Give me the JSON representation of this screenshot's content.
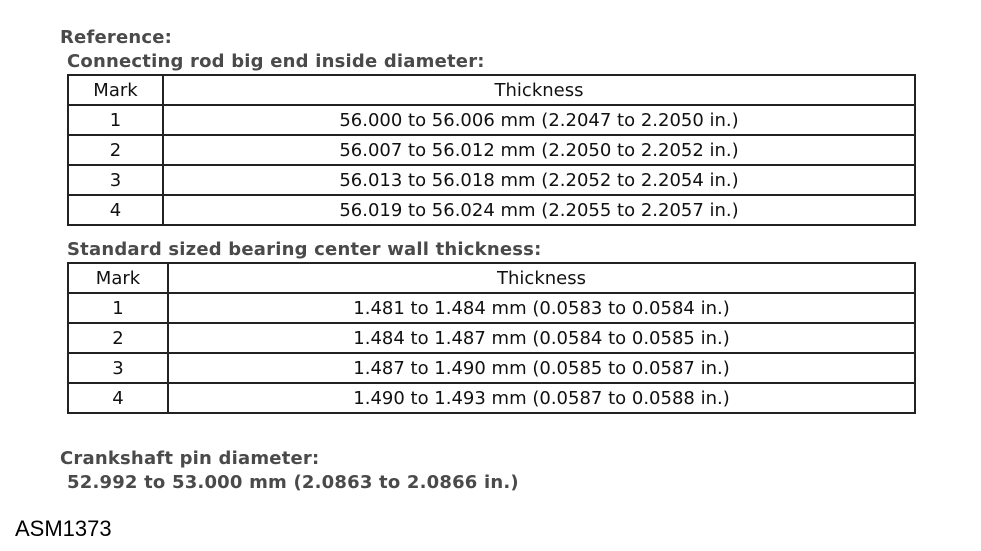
{
  "reference_label": "Reference:",
  "section1": {
    "title": "Connecting rod big end inside diameter:",
    "headers": {
      "mark": "Mark",
      "thickness": "Thickness"
    },
    "rows": [
      {
        "mark": "1",
        "thickness": "56.000 to 56.006 mm (2.2047 to 2.2050 in.)"
      },
      {
        "mark": "2",
        "thickness": "56.007 to 56.012 mm (2.2050 to 2.2052 in.)"
      },
      {
        "mark": "3",
        "thickness": "56.013 to 56.018 mm (2.2052 to 2.2054 in.)"
      },
      {
        "mark": "4",
        "thickness": "56.019 to 56.024 mm (2.2055 to 2.2057 in.)"
      }
    ]
  },
  "section2": {
    "title": "Standard sized bearing center wall thickness:",
    "headers": {
      "mark": "Mark",
      "thickness": "Thickness"
    },
    "rows": [
      {
        "mark": "1",
        "thickness": "1.481 to 1.484 mm (0.0583 to 0.0584 in.)"
      },
      {
        "mark": "2",
        "thickness": "1.484 to 1.487 mm (0.0584 to 0.0585 in.)"
      },
      {
        "mark": "3",
        "thickness": "1.487 to 1.490 mm (0.0585 to 0.0587 in.)"
      },
      {
        "mark": "4",
        "thickness": "1.490 to 1.493 mm (0.0587 to 0.0588 in.)"
      }
    ]
  },
  "crankshaft": {
    "title": "Crankshaft pin diameter:",
    "value": "52.992 to 53.000 mm (2.0863 to 2.0866 in.)"
  },
  "figure_id": "ASM1373"
}
